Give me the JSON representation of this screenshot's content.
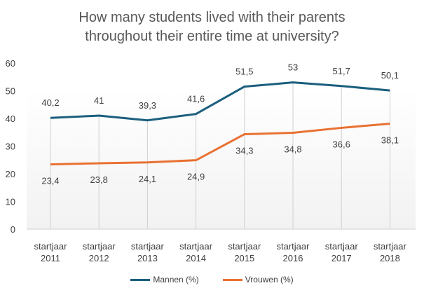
{
  "chart_data": {
    "type": "line",
    "title_line1": "How many students lived with their parents",
    "title_line2": "throughout their entire time at university?",
    "categories": [
      [
        "startjaar",
        "2011"
      ],
      [
        "startjaar",
        "2012"
      ],
      [
        "startjaar",
        "2013"
      ],
      [
        "startjaar",
        "2014"
      ],
      [
        "startjaar",
        "2015"
      ],
      [
        "startjaar",
        "2016"
      ],
      [
        "startjaar",
        "2017"
      ],
      [
        "startjaar",
        "2018"
      ]
    ],
    "ylim": [
      0,
      60
    ],
    "yticks": [
      0,
      10,
      20,
      30,
      40,
      50,
      60
    ],
    "drop_lines": true,
    "legend_position": "bottom",
    "series": [
      {
        "name": "Mannen (%)",
        "color": "#1B5E7E",
        "values": [
          40.2,
          41,
          39.3,
          41.6,
          51.5,
          53,
          51.7,
          50.1
        ],
        "labels": [
          "40,2",
          "41",
          "39,3",
          "41,6",
          "51,5",
          "53",
          "51,7",
          "50,1"
        ],
        "label_pos": "above"
      },
      {
        "name": "Vrouwen (%)",
        "color": "#E97132",
        "values": [
          23.4,
          23.8,
          24.1,
          24.9,
          34.3,
          34.8,
          36.6,
          38.1
        ],
        "labels": [
          "23,4",
          "23,8",
          "24,1",
          "24,9",
          "34,3",
          "34,8",
          "36,6",
          "38,1"
        ],
        "label_pos": "below"
      }
    ]
  }
}
